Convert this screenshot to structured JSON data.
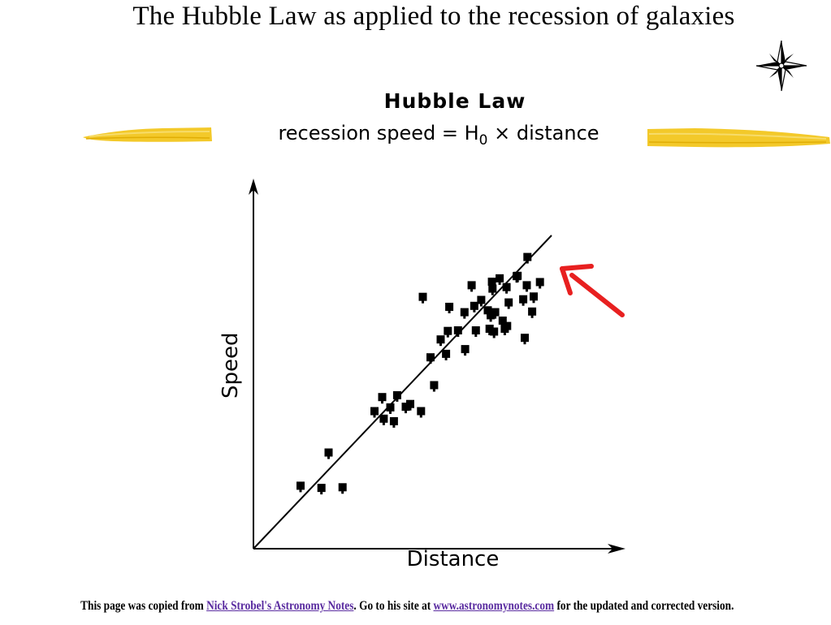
{
  "slide": {
    "title": "The Hubble Law as applied to the recession of galaxies",
    "decorations": {
      "corner_icon": "compass-star-icon",
      "brush_stroke_color": "#f2c418"
    },
    "footer": {
      "text_before": "This page was copied from ",
      "link1_text": "Nick Strobel's Astronomy Notes",
      "text_middle": ". Go to his site at ",
      "link2_text": "www.astronomynotes.com",
      "text_after": " for the updated and corrected version.",
      "link_color": "#5a2ca0"
    }
  },
  "chart_data": {
    "type": "scatter",
    "title": "Hubble Law",
    "subtitle_prefix": "recession speed = H",
    "subtitle_subscript": "0",
    "subtitle_suffix": " × distance",
    "xlabel": "Distance",
    "ylabel": "Speed",
    "xlim": [
      0,
      100
    ],
    "ylim": [
      0,
      100
    ],
    "grid": false,
    "legend": "none",
    "fit_line": {
      "x": [
        0,
        100
      ],
      "y": [
        0,
        100
      ]
    },
    "point_color": "#000000",
    "annotation_arrow_color": "#e82020",
    "points": [
      {
        "x": 15.8,
        "y": 20.1
      },
      {
        "x": 22.8,
        "y": 19.4
      },
      {
        "x": 25.2,
        "y": 30.7
      },
      {
        "x": 29.9,
        "y": 19.6
      },
      {
        "x": 40.6,
        "y": 43.9
      },
      {
        "x": 43.2,
        "y": 48.4
      },
      {
        "x": 43.7,
        "y": 41.5
      },
      {
        "x": 45.9,
        "y": 45.1
      },
      {
        "x": 47.1,
        "y": 40.7
      },
      {
        "x": 48.2,
        "y": 49.0
      },
      {
        "x": 51.1,
        "y": 45.3
      },
      {
        "x": 52.6,
        "y": 46.2
      },
      {
        "x": 56.2,
        "y": 43.9
      },
      {
        "x": 56.8,
        "y": 80.4
      },
      {
        "x": 59.4,
        "y": 61.1
      },
      {
        "x": 60.6,
        "y": 52.2
      },
      {
        "x": 62.8,
        "y": 66.8
      },
      {
        "x": 64.6,
        "y": 62.2
      },
      {
        "x": 65.2,
        "y": 69.5
      },
      {
        "x": 65.7,
        "y": 77.2
      },
      {
        "x": 68.6,
        "y": 69.7
      },
      {
        "x": 70.8,
        "y": 75.5
      },
      {
        "x": 71.0,
        "y": 63.7
      },
      {
        "x": 73.2,
        "y": 84.1
      },
      {
        "x": 74.1,
        "y": 77.5
      },
      {
        "x": 74.6,
        "y": 69.7
      },
      {
        "x": 76.4,
        "y": 79.4
      },
      {
        "x": 78.6,
        "y": 76.1
      },
      {
        "x": 79.2,
        "y": 70.2
      },
      {
        "x": 79.6,
        "y": 74.5
      },
      {
        "x": 80.0,
        "y": 85.2
      },
      {
        "x": 80.2,
        "y": 83.0
      },
      {
        "x": 80.7,
        "y": 69.3
      },
      {
        "x": 81.1,
        "y": 75.5
      },
      {
        "x": 82.6,
        "y": 86.3
      },
      {
        "x": 83.6,
        "y": 72.8
      },
      {
        "x": 84.3,
        "y": 70.2
      },
      {
        "x": 84.9,
        "y": 83.5
      },
      {
        "x": 85.1,
        "y": 71.1
      },
      {
        "x": 85.6,
        "y": 78.6
      },
      {
        "x": 88.3,
        "y": 87.0
      },
      {
        "x": 88.6,
        "y": 87.1
      },
      {
        "x": 90.5,
        "y": 79.6
      },
      {
        "x": 91.0,
        "y": 67.3
      },
      {
        "x": 91.7,
        "y": 84.1
      },
      {
        "x": 91.9,
        "y": 93.1
      },
      {
        "x": 93.5,
        "y": 75.7
      },
      {
        "x": 94.0,
        "y": 80.5
      },
      {
        "x": 96.1,
        "y": 85.1
      }
    ]
  }
}
